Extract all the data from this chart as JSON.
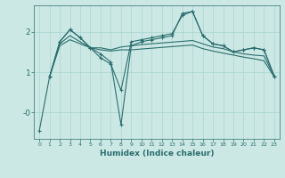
{
  "xlabel": "Humidex (Indice chaleur)",
  "background_color": "#cce8e4",
  "grid_color": "#b0d8d4",
  "line_color": "#2a6e6e",
  "xlim": [
    -0.5,
    23.5
  ],
  "ylim": [
    -0.65,
    2.65
  ],
  "yticks": [
    0.0,
    1.0,
    2.0
  ],
  "ytick_labels": [
    "-0",
    "1",
    "2"
  ],
  "xticks": [
    0,
    1,
    2,
    3,
    4,
    5,
    6,
    7,
    8,
    9,
    10,
    11,
    12,
    13,
    14,
    15,
    16,
    17,
    18,
    19,
    20,
    21,
    22,
    23
  ],
  "lines": [
    {
      "x": [
        0,
        1,
        2,
        3,
        4,
        5,
        6,
        7,
        8,
        9,
        10,
        11,
        12,
        13,
        14,
        15,
        16,
        17,
        18,
        19,
        20,
        21,
        22,
        23
      ],
      "y": [
        -0.45,
        0.88,
        1.75,
        2.05,
        1.85,
        1.6,
        1.35,
        1.2,
        0.55,
        1.75,
        1.8,
        1.85,
        1.9,
        1.95,
        2.4,
        2.5,
        1.9,
        1.7,
        1.65,
        1.5,
        1.55,
        1.6,
        1.55,
        0.9
      ],
      "marker": true
    },
    {
      "x": [
        1,
        2,
        3,
        4,
        5,
        6,
        7,
        8,
        9,
        10,
        11,
        12,
        13,
        14,
        15,
        16,
        17,
        18,
        19,
        20,
        21,
        22,
        23
      ],
      "y": [
        0.88,
        1.75,
        2.05,
        1.85,
        1.6,
        1.45,
        1.25,
        -0.3,
        1.65,
        1.75,
        1.8,
        1.85,
        1.9,
        2.45,
        2.5,
        1.9,
        1.7,
        1.65,
        1.5,
        1.55,
        1.6,
        1.55,
        0.9
      ],
      "marker": true
    },
    {
      "x": [
        1,
        2,
        3,
        4,
        5,
        6,
        7,
        8,
        9,
        10,
        11,
        12,
        13,
        14,
        15,
        16,
        17,
        18,
        19,
        20,
        21,
        22,
        23
      ],
      "y": [
        0.88,
        1.7,
        1.9,
        1.75,
        1.6,
        1.6,
        1.55,
        1.62,
        1.65,
        1.68,
        1.7,
        1.72,
        1.74,
        1.76,
        1.78,
        1.7,
        1.62,
        1.58,
        1.5,
        1.45,
        1.42,
        1.4,
        0.9
      ],
      "marker": false
    },
    {
      "x": [
        1,
        2,
        3,
        4,
        5,
        6,
        7,
        8,
        9,
        10,
        11,
        12,
        13,
        14,
        15,
        16,
        17,
        18,
        19,
        20,
        21,
        22,
        23
      ],
      "y": [
        0.88,
        1.65,
        1.8,
        1.7,
        1.6,
        1.55,
        1.52,
        1.55,
        1.55,
        1.57,
        1.59,
        1.61,
        1.63,
        1.65,
        1.67,
        1.58,
        1.52,
        1.47,
        1.42,
        1.37,
        1.33,
        1.28,
        0.88
      ],
      "marker": false
    }
  ]
}
